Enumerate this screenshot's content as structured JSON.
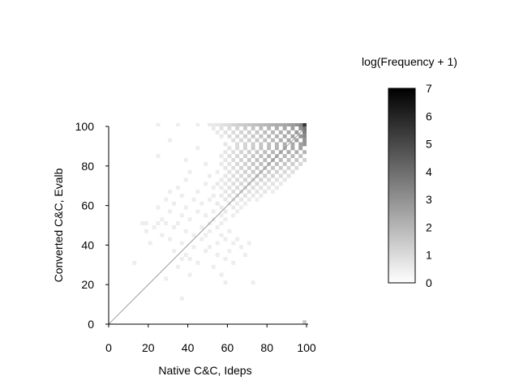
{
  "chart_data": {
    "type": "heatmap",
    "title": "",
    "xlabel": "Native C&C, Ideps",
    "ylabel": "Converted C&C, Evalb",
    "xlim": [
      0,
      100
    ],
    "ylim": [
      0,
      100
    ],
    "x_ticks": [
      "0",
      "20",
      "40",
      "60",
      "80",
      "100"
    ],
    "y_ticks": [
      "0",
      "20",
      "40",
      "60",
      "80",
      "100"
    ],
    "bin_size": 2,
    "diagonal_reference_line": true,
    "colorbar": {
      "label": "log(Frequency + 1)",
      "range": [
        0,
        7
      ],
      "ticks": [
        "0",
        "1",
        "2",
        "3",
        "4",
        "5",
        "6",
        "7"
      ],
      "low_color": "#ffffff",
      "high_color": "#000000"
    },
    "cells": [
      [
        24,
        100,
        0.5
      ],
      [
        34,
        100,
        0.5
      ],
      [
        44,
        100,
        0.5
      ],
      [
        50,
        100,
        0.6
      ],
      [
        52,
        100,
        0.6
      ],
      [
        54,
        100,
        0.7
      ],
      [
        56,
        100,
        0.8
      ],
      [
        58,
        100,
        0.9
      ],
      [
        60,
        100,
        1.0
      ],
      [
        62,
        100,
        1.2
      ],
      [
        64,
        100,
        1.3
      ],
      [
        66,
        100,
        1.4
      ],
      [
        68,
        100,
        1.5
      ],
      [
        70,
        100,
        1.6
      ],
      [
        72,
        100,
        1.7
      ],
      [
        74,
        100,
        1.8
      ],
      [
        76,
        100,
        1.9
      ],
      [
        78,
        100,
        2.0
      ],
      [
        80,
        100,
        2.1
      ],
      [
        82,
        100,
        2.2
      ],
      [
        84,
        100,
        2.3
      ],
      [
        86,
        100,
        2.4
      ],
      [
        88,
        100,
        2.5
      ],
      [
        90,
        100,
        2.6
      ],
      [
        92,
        100,
        2.8
      ],
      [
        94,
        100,
        3.0
      ],
      [
        96,
        100,
        3.4
      ],
      [
        98,
        100,
        5.5
      ],
      [
        52,
        98,
        0.6
      ],
      [
        56,
        98,
        0.8
      ],
      [
        60,
        98,
        1.0
      ],
      [
        64,
        98,
        1.2
      ],
      [
        68,
        98,
        1.4
      ],
      [
        72,
        98,
        1.6
      ],
      [
        76,
        98,
        1.8
      ],
      [
        80,
        98,
        2.0
      ],
      [
        84,
        98,
        2.2
      ],
      [
        88,
        98,
        2.4
      ],
      [
        92,
        98,
        2.6
      ],
      [
        96,
        98,
        3.0
      ],
      [
        98,
        98,
        4.0
      ],
      [
        54,
        96,
        0.6
      ],
      [
        58,
        96,
        0.8
      ],
      [
        62,
        96,
        1.0
      ],
      [
        66,
        96,
        1.2
      ],
      [
        70,
        96,
        1.4
      ],
      [
        74,
        96,
        1.6
      ],
      [
        78,
        96,
        1.8
      ],
      [
        82,
        96,
        2.0
      ],
      [
        86,
        96,
        2.2
      ],
      [
        90,
        96,
        2.4
      ],
      [
        94,
        96,
        2.8
      ],
      [
        98,
        96,
        3.6
      ],
      [
        56,
        94,
        0.6
      ],
      [
        60,
        94,
        0.9
      ],
      [
        64,
        94,
        1.1
      ],
      [
        68,
        94,
        1.3
      ],
      [
        72,
        94,
        1.5
      ],
      [
        76,
        94,
        1.7
      ],
      [
        80,
        94,
        1.9
      ],
      [
        84,
        94,
        2.1
      ],
      [
        88,
        94,
        2.3
      ],
      [
        92,
        94,
        2.5
      ],
      [
        96,
        94,
        2.9
      ],
      [
        98,
        94,
        3.3
      ],
      [
        30,
        92,
        0.5
      ],
      [
        62,
        92,
        0.9
      ],
      [
        66,
        92,
        1.1
      ],
      [
        70,
        92,
        1.3
      ],
      [
        74,
        92,
        1.5
      ],
      [
        78,
        92,
        1.7
      ],
      [
        82,
        92,
        1.9
      ],
      [
        86,
        92,
        2.2
      ],
      [
        90,
        92,
        2.4
      ],
      [
        94,
        92,
        2.6
      ],
      [
        98,
        92,
        3.0
      ],
      [
        58,
        90,
        0.7
      ],
      [
        64,
        90,
        1.0
      ],
      [
        68,
        90,
        1.2
      ],
      [
        72,
        90,
        1.4
      ],
      [
        76,
        90,
        1.6
      ],
      [
        80,
        90,
        1.8
      ],
      [
        84,
        90,
        2.0
      ],
      [
        88,
        90,
        2.2
      ],
      [
        92,
        90,
        2.4
      ],
      [
        96,
        90,
        2.6
      ],
      [
        98,
        90,
        2.9
      ],
      [
        44,
        88,
        0.5
      ],
      [
        60,
        88,
        0.8
      ],
      [
        64,
        88,
        1.0
      ],
      [
        68,
        88,
        1.2
      ],
      [
        72,
        88,
        1.5
      ],
      [
        76,
        88,
        1.7
      ],
      [
        80,
        88,
        1.9
      ],
      [
        84,
        88,
        2.1
      ],
      [
        88,
        88,
        2.3
      ],
      [
        92,
        88,
        2.4
      ],
      [
        96,
        88,
        2.6
      ],
      [
        58,
        86,
        0.7
      ],
      [
        62,
        86,
        0.9
      ],
      [
        66,
        86,
        1.2
      ],
      [
        70,
        86,
        1.4
      ],
      [
        74,
        86,
        1.6
      ],
      [
        78,
        86,
        1.8
      ],
      [
        82,
        86,
        2.0
      ],
      [
        86,
        86,
        2.2
      ],
      [
        90,
        86,
        2.3
      ],
      [
        94,
        86,
        2.2
      ],
      [
        98,
        86,
        2.0
      ],
      [
        24,
        84,
        0.5
      ],
      [
        56,
        84,
        0.6
      ],
      [
        60,
        84,
        0.9
      ],
      [
        64,
        84,
        1.1
      ],
      [
        68,
        84,
        1.3
      ],
      [
        72,
        84,
        1.6
      ],
      [
        76,
        84,
        1.8
      ],
      [
        80,
        84,
        2.0
      ],
      [
        84,
        84,
        2.1
      ],
      [
        88,
        84,
        2.0
      ],
      [
        92,
        84,
        1.9
      ],
      [
        96,
        84,
        1.7
      ],
      [
        38,
        82,
        0.5
      ],
      [
        58,
        82,
        0.7
      ],
      [
        62,
        82,
        1.0
      ],
      [
        66,
        82,
        1.2
      ],
      [
        70,
        82,
        1.5
      ],
      [
        74,
        82,
        1.7
      ],
      [
        78,
        82,
        1.9
      ],
      [
        82,
        82,
        2.0
      ],
      [
        86,
        82,
        1.9
      ],
      [
        90,
        82,
        1.7
      ],
      [
        94,
        82,
        1.5
      ],
      [
        98,
        82,
        1.2
      ],
      [
        48,
        80,
        0.5
      ],
      [
        56,
        80,
        0.6
      ],
      [
        60,
        80,
        0.8
      ],
      [
        64,
        80,
        1.1
      ],
      [
        68,
        80,
        1.3
      ],
      [
        72,
        80,
        1.6
      ],
      [
        76,
        80,
        1.8
      ],
      [
        80,
        80,
        1.9
      ],
      [
        84,
        80,
        1.8
      ],
      [
        88,
        80,
        1.6
      ],
      [
        92,
        80,
        1.4
      ],
      [
        96,
        80,
        1.1
      ],
      [
        58,
        78,
        0.7
      ],
      [
        62,
        78,
        0.9
      ],
      [
        66,
        78,
        1.2
      ],
      [
        70,
        78,
        1.4
      ],
      [
        74,
        78,
        1.6
      ],
      [
        78,
        78,
        1.7
      ],
      [
        82,
        78,
        1.6
      ],
      [
        86,
        78,
        1.4
      ],
      [
        90,
        78,
        1.2
      ],
      [
        94,
        78,
        1.0
      ],
      [
        40,
        76,
        0.5
      ],
      [
        54,
        76,
        0.5
      ],
      [
        60,
        76,
        0.8
      ],
      [
        64,
        76,
        1.0
      ],
      [
        68,
        76,
        1.3
      ],
      [
        72,
        76,
        1.5
      ],
      [
        76,
        76,
        1.6
      ],
      [
        80,
        76,
        1.5
      ],
      [
        84,
        76,
        1.3
      ],
      [
        88,
        76,
        1.1
      ],
      [
        92,
        76,
        0.9
      ],
      [
        50,
        74,
        0.5
      ],
      [
        58,
        74,
        0.7
      ],
      [
        62,
        74,
        0.9
      ],
      [
        66,
        74,
        1.1
      ],
      [
        70,
        74,
        1.3
      ],
      [
        74,
        74,
        1.5
      ],
      [
        78,
        74,
        1.4
      ],
      [
        82,
        74,
        1.2
      ],
      [
        86,
        74,
        1.0
      ],
      [
        90,
        74,
        0.8
      ],
      [
        38,
        72,
        0.5
      ],
      [
        56,
        72,
        0.6
      ],
      [
        60,
        72,
        0.8
      ],
      [
        64,
        72,
        1.0
      ],
      [
        68,
        72,
        1.2
      ],
      [
        72,
        72,
        1.3
      ],
      [
        76,
        72,
        1.2
      ],
      [
        80,
        72,
        1.0
      ],
      [
        84,
        72,
        0.8
      ],
      [
        88,
        72,
        0.7
      ],
      [
        48,
        70,
        0.5
      ],
      [
        54,
        70,
        0.6
      ],
      [
        58,
        70,
        0.7
      ],
      [
        62,
        70,
        0.9
      ],
      [
        66,
        70,
        1.1
      ],
      [
        70,
        70,
        1.2
      ],
      [
        74,
        70,
        1.1
      ],
      [
        78,
        70,
        0.9
      ],
      [
        82,
        70,
        0.8
      ],
      [
        86,
        70,
        0.6
      ],
      [
        34,
        68,
        0.5
      ],
      [
        52,
        68,
        0.5
      ],
      [
        56,
        68,
        0.6
      ],
      [
        60,
        68,
        0.8
      ],
      [
        64,
        68,
        1.0
      ],
      [
        68,
        68,
        1.1
      ],
      [
        72,
        68,
        1.0
      ],
      [
        76,
        68,
        0.8
      ],
      [
        80,
        68,
        0.7
      ],
      [
        84,
        68,
        0.6
      ],
      [
        30,
        66,
        0.5
      ],
      [
        44,
        66,
        0.5
      ],
      [
        58,
        66,
        0.7
      ],
      [
        62,
        66,
        0.9
      ],
      [
        66,
        66,
        1.0
      ],
      [
        70,
        66,
        0.9
      ],
      [
        74,
        66,
        0.8
      ],
      [
        78,
        66,
        0.7
      ],
      [
        82,
        66,
        0.5
      ],
      [
        36,
        64,
        0.5
      ],
      [
        52,
        64,
        0.5
      ],
      [
        56,
        64,
        0.6
      ],
      [
        60,
        64,
        0.8
      ],
      [
        64,
        64,
        0.9
      ],
      [
        68,
        64,
        0.8
      ],
      [
        72,
        64,
        0.7
      ],
      [
        76,
        64,
        0.6
      ],
      [
        28,
        62,
        0.5
      ],
      [
        42,
        62,
        0.5
      ],
      [
        50,
        62,
        0.5
      ],
      [
        58,
        62,
        0.7
      ],
      [
        62,
        62,
        0.8
      ],
      [
        66,
        62,
        0.7
      ],
      [
        70,
        62,
        0.6
      ],
      [
        74,
        62,
        0.5
      ],
      [
        32,
        60,
        0.5
      ],
      [
        46,
        60,
        0.5
      ],
      [
        54,
        60,
        0.6
      ],
      [
        60,
        60,
        0.7
      ],
      [
        64,
        60,
        0.6
      ],
      [
        68,
        60,
        0.5
      ],
      [
        24,
        58,
        0.5
      ],
      [
        38,
        58,
        0.5
      ],
      [
        56,
        58,
        0.6
      ],
      [
        62,
        58,
        0.6
      ],
      [
        66,
        58,
        0.5
      ],
      [
        30,
        56,
        0.5
      ],
      [
        44,
        56,
        0.5
      ],
      [
        52,
        56,
        0.5
      ],
      [
        58,
        56,
        0.6
      ],
      [
        64,
        56,
        0.5
      ],
      [
        36,
        54,
        0.5
      ],
      [
        48,
        54,
        0.5
      ],
      [
        56,
        54,
        0.5
      ],
      [
        62,
        54,
        0.5
      ],
      [
        26,
        52,
        0.5
      ],
      [
        40,
        52,
        0.5
      ],
      [
        52,
        52,
        0.5
      ],
      [
        58,
        52,
        0.5
      ],
      [
        16,
        50,
        0.5
      ],
      [
        18,
        50,
        0.5
      ],
      [
        24,
        50,
        0.5
      ],
      [
        28,
        50,
        0.5
      ],
      [
        34,
        50,
        0.5
      ],
      [
        50,
        50,
        0.5
      ],
      [
        56,
        50,
        0.5
      ],
      [
        22,
        48,
        0.5
      ],
      [
        32,
        48,
        0.5
      ],
      [
        46,
        48,
        0.5
      ],
      [
        54,
        48,
        0.5
      ],
      [
        18,
        46,
        0.5
      ],
      [
        38,
        46,
        0.5
      ],
      [
        50,
        46,
        0.5
      ],
      [
        60,
        46,
        0.5
      ],
      [
        26,
        44,
        0.5
      ],
      [
        42,
        44,
        0.5
      ],
      [
        48,
        44,
        0.5
      ],
      [
        56,
        44,
        0.5
      ],
      [
        30,
        42,
        0.5
      ],
      [
        46,
        42,
        0.5
      ],
      [
        58,
        42,
        0.5
      ],
      [
        64,
        42,
        0.5
      ],
      [
        20,
        40,
        0.5
      ],
      [
        36,
        40,
        0.5
      ],
      [
        54,
        40,
        0.5
      ],
      [
        62,
        40,
        0.5
      ],
      [
        70,
        40,
        0.5
      ],
      [
        42,
        38,
        0.5
      ],
      [
        50,
        38,
        0.5
      ],
      [
        66,
        38,
        0.5
      ],
      [
        32,
        36,
        0.5
      ],
      [
        48,
        36,
        0.5
      ],
      [
        60,
        36,
        0.5
      ],
      [
        38,
        34,
        0.5
      ],
      [
        54,
        34,
        0.5
      ],
      [
        68,
        34,
        0.5
      ],
      [
        36,
        32,
        0.5
      ],
      [
        40,
        32,
        0.5
      ],
      [
        58,
        32,
        0.5
      ],
      [
        12,
        30,
        0.5
      ],
      [
        44,
        30,
        0.5
      ],
      [
        62,
        30,
        0.5
      ],
      [
        34,
        28,
        0.5
      ],
      [
        52,
        28,
        0.5
      ],
      [
        40,
        24,
        0.5
      ],
      [
        56,
        24,
        0.5
      ],
      [
        28,
        22,
        0.5
      ],
      [
        58,
        20,
        0.5
      ],
      [
        72,
        20,
        0.5
      ],
      [
        36,
        12,
        0.5
      ],
      [
        98,
        0,
        1.5
      ]
    ]
  }
}
